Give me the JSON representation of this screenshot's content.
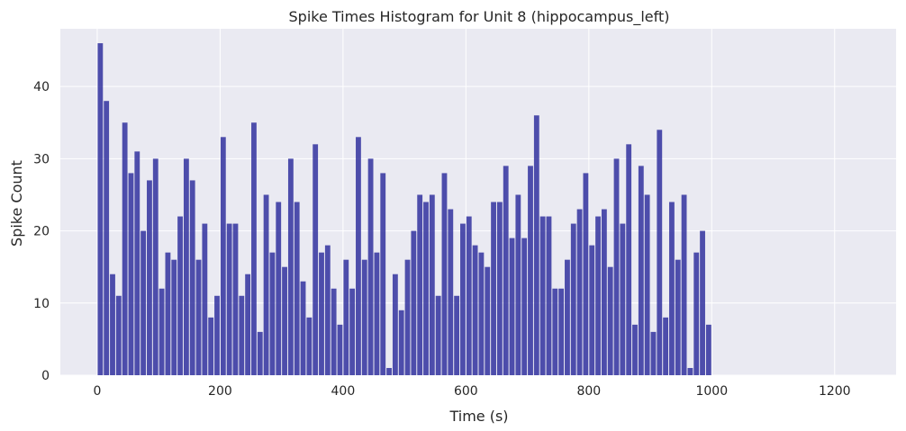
{
  "chart_data": {
    "type": "bar",
    "title": "Spike Times Histogram for Unit 8 (hippocampus_left)",
    "xlabel": "Time (s)",
    "ylabel": "Spike Count",
    "xlim": [
      -60,
      1300
    ],
    "ylim": [
      0,
      48
    ],
    "xticks": [
      0,
      200,
      400,
      600,
      800,
      1000,
      1200
    ],
    "yticks": [
      0,
      10,
      20,
      30,
      40
    ],
    "grid": true,
    "legend": "none",
    "bin_width": 10,
    "bin_start": 0,
    "values": [
      46,
      38,
      14,
      11,
      35,
      28,
      31,
      20,
      27,
      30,
      12,
      17,
      16,
      22,
      30,
      27,
      16,
      21,
      8,
      11,
      33,
      21,
      21,
      11,
      14,
      35,
      6,
      25,
      17,
      24,
      15,
      30,
      24,
      13,
      8,
      32,
      17,
      18,
      12,
      7,
      16,
      12,
      33,
      16,
      30,
      17,
      28,
      1,
      14,
      9,
      16,
      20,
      25,
      24,
      25,
      11,
      28,
      23,
      11,
      21,
      22,
      18,
      17,
      15,
      24,
      24,
      29,
      19,
      25,
      19,
      29,
      36,
      22,
      22,
      12,
      12,
      16,
      21,
      23,
      28,
      18,
      22,
      23,
      15,
      30,
      21,
      32,
      7,
      29,
      25,
      6,
      34,
      8,
      24,
      16,
      25,
      1,
      17,
      20,
      7
    ]
  },
  "colors": {
    "bar": "#2b2b9b",
    "plot_bg": "#eaeaf2",
    "grid": "#ffffff",
    "text": "#262626"
  }
}
